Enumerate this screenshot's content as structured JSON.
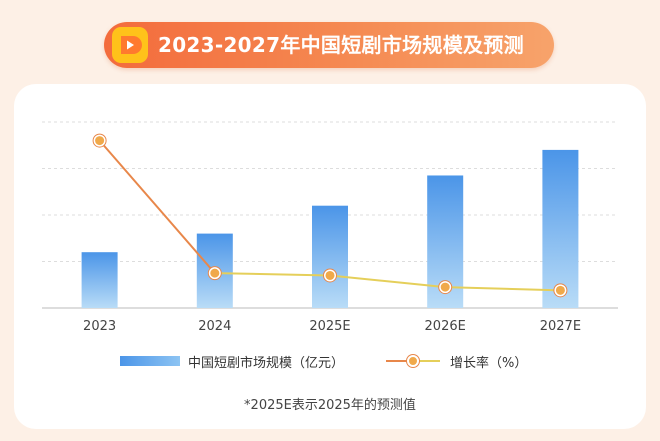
{
  "header": {
    "title": "2023-2027年中国短剧市场规模及预测",
    "logo_icon": "play-icon"
  },
  "chart_data": {
    "type": "bar",
    "categories": [
      "2023",
      "2024",
      "2025E",
      "2026E",
      "2027E"
    ],
    "ylim": [
      0,
      4
    ],
    "grid": true,
    "series": [
      {
        "name": "中国短剧市场规模（亿元）",
        "kind": "bar",
        "values": [
          1.2,
          1.6,
          2.2,
          2.85,
          3.4
        ]
      },
      {
        "name": "增长率（%）",
        "kind": "line",
        "values": [
          3.6,
          0.75,
          0.7,
          0.45,
          0.38
        ]
      }
    ],
    "legend_position": "bottom",
    "colors": {
      "bar_top": "#4b95e8",
      "bar_bottom": "#b9dcf7",
      "line_first": "#e8874a",
      "line_rest": "#e5cf5a",
      "marker": "#f0a94a"
    }
  },
  "footnote": "*2025E表示2025年的预测值"
}
